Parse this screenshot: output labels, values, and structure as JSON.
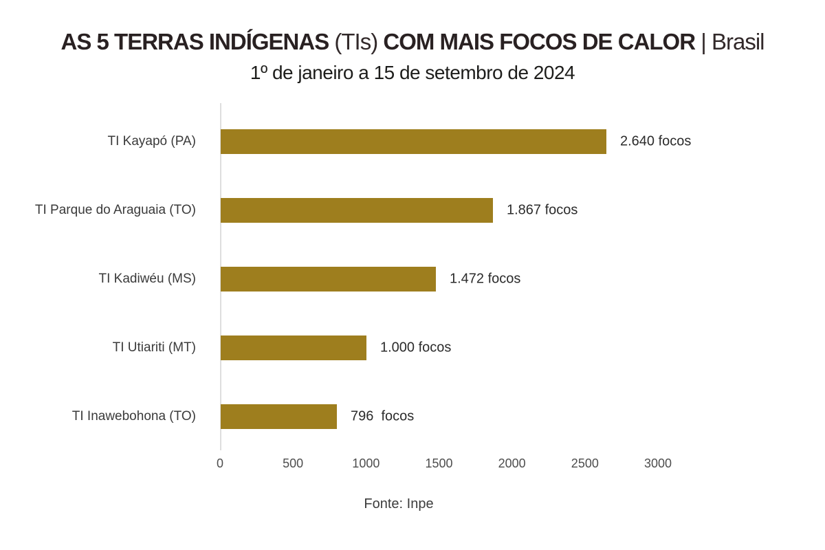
{
  "header": {
    "title_parts": [
      {
        "text": "AS 5 TERRAS INDÍGENAS",
        "bold": true
      },
      {
        "text": " (TIs) ",
        "bold": false
      },
      {
        "text": "COM MAIS FOCOS DE CALOR",
        "bold": true
      },
      {
        "text": " | Brasil",
        "bold": false
      }
    ],
    "subtitle": "1º de janeiro a 15 de setembro de 2024"
  },
  "footer": {
    "source": "Fonte: Inpe"
  },
  "chart_data": {
    "type": "bar",
    "orientation": "horizontal",
    "title": "AS 5 TERRAS INDÍGENAS (TIs) COM MAIS FOCOS DE CALOR | Brasil",
    "subtitle": "1º de janeiro a 15 de setembro de 2024",
    "source": "Fonte: Inpe",
    "categories": [
      "TI Kayapó (PA)",
      "TI Parque do Araguaia (TO)",
      "TI Kadiwéu (MS)",
      "TI Utiariti (MT)",
      "TI Inawebohona (TO)"
    ],
    "values": [
      2640,
      1867,
      1472,
      1000,
      796
    ],
    "value_labels": [
      "2.640 focos",
      "1.867 focos",
      "1.472 focos",
      "1.000 focos",
      "796  focos"
    ],
    "unit": "focos",
    "bar_color": "#9e7e1e",
    "xlim": [
      0,
      3000
    ],
    "x_ticks": [
      0,
      500,
      1000,
      1500,
      2000,
      2500,
      3000
    ],
    "grid": false,
    "legend": false
  }
}
